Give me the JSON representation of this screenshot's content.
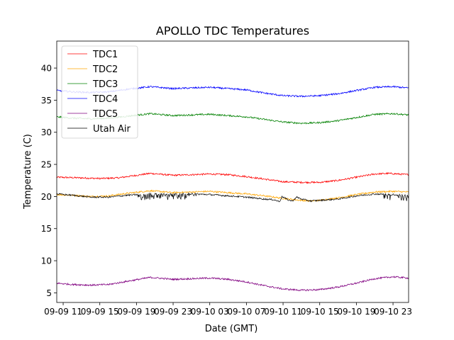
{
  "chart_data": {
    "type": "line",
    "title": "APOLLO TDC Temperatures",
    "xlabel": "Date (GMT)",
    "ylabel": "Temperature (C)",
    "xlim": [
      9.3,
      47.7
    ],
    "ylim": [
      3.5,
      44.2
    ],
    "grid": false,
    "legend_position": "top-left",
    "x_ticks": [
      {
        "value": 10,
        "label": "09-09 11"
      },
      {
        "value": 14,
        "label": "09-09 15"
      },
      {
        "value": 18,
        "label": "09-09 19"
      },
      {
        "value": 22,
        "label": "09-09 23"
      },
      {
        "value": 26,
        "label": "09-10 03"
      },
      {
        "value": 30,
        "label": "09-10 07"
      },
      {
        "value": 34,
        "label": "09-10 11"
      },
      {
        "value": 38,
        "label": "09-10 15"
      },
      {
        "value": 42,
        "label": "09-10 19"
      },
      {
        "value": 46,
        "label": "09-10 23"
      }
    ],
    "y_ticks": [
      5,
      10,
      15,
      20,
      25,
      30,
      35,
      40
    ],
    "series": [
      {
        "name": "TDC1",
        "color": "#ff0000",
        "x": [
          9.3,
          12,
          14,
          16,
          18,
          19.5,
          22,
          24,
          26,
          28,
          30,
          32,
          34,
          36,
          38,
          40,
          42,
          44,
          45.5,
          47.7
        ],
        "y": [
          23.0,
          22.9,
          22.8,
          22.9,
          23.3,
          23.6,
          23.3,
          23.4,
          23.5,
          23.4,
          23.1,
          22.7,
          22.3,
          22.2,
          22.2,
          22.5,
          23.0,
          23.5,
          23.6,
          23.4
        ]
      },
      {
        "name": "TDC2",
        "color": "#ffa500",
        "x": [
          9.3,
          11,
          13,
          15,
          17,
          19.5,
          22,
          24,
          26,
          28,
          30,
          32,
          34,
          36,
          37,
          38,
          40,
          42,
          44,
          46,
          47.7
        ],
        "y": [
          20.3,
          20.2,
          20.0,
          20.1,
          20.5,
          20.9,
          20.6,
          20.7,
          20.8,
          20.6,
          20.4,
          20.1,
          19.7,
          19.4,
          19.3,
          19.4,
          19.8,
          20.3,
          20.7,
          20.8,
          20.7
        ]
      },
      {
        "name": "TDC3",
        "color": "#008000",
        "x": [
          9.3,
          11,
          13,
          15,
          17,
          19.5,
          22,
          24,
          26,
          28,
          30,
          32,
          34,
          36,
          38,
          40,
          42,
          44,
          46,
          47.7
        ],
        "y": [
          32.4,
          32.2,
          32.1,
          32.2,
          32.5,
          32.9,
          32.6,
          32.7,
          32.8,
          32.6,
          32.4,
          32.0,
          31.6,
          31.4,
          31.5,
          31.8,
          32.3,
          32.8,
          32.9,
          32.7
        ]
      },
      {
        "name": "TDC4",
        "color": "#0000ff",
        "x": [
          9.3,
          11,
          13,
          15,
          17,
          19.5,
          22,
          24,
          26,
          28,
          30,
          32,
          34,
          36,
          38,
          40,
          42,
          44,
          46,
          47.7
        ],
        "y": [
          36.5,
          36.3,
          36.2,
          36.3,
          36.7,
          37.1,
          36.8,
          36.9,
          37.0,
          36.8,
          36.6,
          36.1,
          35.7,
          35.6,
          35.7,
          36.0,
          36.5,
          37.0,
          37.1,
          36.9
        ]
      },
      {
        "name": "TDC5",
        "color": "#800080",
        "x": [
          9.3,
          11,
          13,
          15,
          17,
          19.5,
          22,
          24,
          26,
          28,
          30,
          32,
          34,
          36,
          38,
          40,
          42,
          44,
          46,
          47.7
        ],
        "y": [
          6.5,
          6.3,
          6.2,
          6.3,
          6.8,
          7.4,
          7.1,
          7.2,
          7.3,
          7.1,
          6.7,
          6.1,
          5.6,
          5.4,
          5.5,
          5.9,
          6.5,
          7.2,
          7.5,
          7.3
        ]
      },
      {
        "name": "Utah Air",
        "color": "#000000",
        "x": [
          9.3,
          11,
          13,
          15,
          17,
          19.5,
          22,
          24,
          26,
          28,
          30,
          32,
          33,
          33.6,
          33.9,
          34.5,
          35,
          35.5,
          36,
          37,
          38,
          40,
          42,
          44,
          46,
          47.7
        ],
        "y": [
          20.4,
          20.2,
          19.9,
          19.9,
          20.2,
          20.4,
          20.4,
          20.4,
          20.3,
          20.1,
          19.9,
          19.6,
          19.5,
          19.2,
          20.0,
          19.5,
          19.3,
          19.9,
          19.6,
          19.3,
          19.4,
          19.6,
          20.1,
          20.4,
          20.3,
          20.2
        ]
      }
    ]
  }
}
